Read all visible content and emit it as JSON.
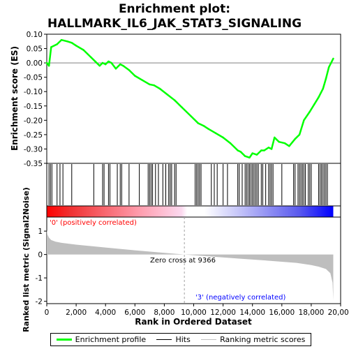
{
  "chart_data": {
    "type": "line",
    "title_line1": "Enrichment plot:",
    "title_line2": "HALLMARK_IL6_JAK_STAT3_SIGNALING",
    "es_panel": {
      "ylabel": "Enrichment score (ES)",
      "ylim": [
        -0.35,
        0.1
      ],
      "yticks": [
        "0.10",
        "0.05",
        "0.00",
        "-0.05",
        "-0.10",
        "-0.15",
        "-0.20",
        "-0.25",
        "-0.30",
        "-0.35"
      ],
      "ytick_values": [
        0.1,
        0.05,
        0.0,
        -0.05,
        -0.1,
        -0.15,
        -0.2,
        -0.25,
        -0.3,
        -0.35
      ],
      "series": [
        {
          "name": "Enrichment profile",
          "color": "#00ff00",
          "x": [
            0,
            150,
            300,
            700,
            1000,
            1400,
            1700,
            2000,
            2500,
            3000,
            3300,
            3600,
            3800,
            4000,
            4200,
            4400,
            4700,
            5000,
            5200,
            5600,
            6000,
            6500,
            7000,
            7300,
            7700,
            8200,
            8700,
            9200,
            9800,
            10300,
            10700,
            11000,
            11500,
            12000,
            12500,
            13000,
            13200,
            13500,
            13800,
            14000,
            14300,
            14600,
            14800,
            15100,
            15300,
            15500,
            15800,
            16200,
            16500,
            16900,
            17200,
            17500,
            17900,
            18200,
            18500,
            18800,
            19000,
            19200,
            19500
          ],
          "y": [
            0.0,
            -0.01,
            0.055,
            0.065,
            0.08,
            0.075,
            0.07,
            0.06,
            0.045,
            0.02,
            0.005,
            -0.01,
            0.0,
            -0.005,
            0.005,
            0.0,
            -0.02,
            -0.005,
            -0.01,
            -0.025,
            -0.045,
            -0.06,
            -0.075,
            -0.078,
            -0.09,
            -0.11,
            -0.13,
            -0.155,
            -0.185,
            -0.21,
            -0.22,
            -0.23,
            -0.245,
            -0.26,
            -0.28,
            -0.305,
            -0.31,
            -0.325,
            -0.33,
            -0.315,
            -0.32,
            -0.305,
            -0.305,
            -0.295,
            -0.3,
            -0.26,
            -0.275,
            -0.28,
            -0.29,
            -0.265,
            -0.25,
            -0.2,
            -0.17,
            -0.145,
            -0.12,
            -0.09,
            -0.055,
            -0.015,
            0.015
          ]
        }
      ]
    },
    "hits": {
      "name": "Hits",
      "x": [
        150,
        250,
        350,
        700,
        900,
        1100,
        1700,
        3200,
        3800,
        3900,
        4200,
        4300,
        4800,
        5000,
        5100,
        5600,
        6300,
        6900,
        7000,
        7100,
        7200,
        7400,
        7600,
        7900,
        8100,
        8300,
        8400,
        8500,
        8700,
        8800,
        10100,
        10200,
        10300,
        10400,
        10500,
        11200,
        11400,
        11600,
        12000,
        12300,
        13000,
        13100,
        13300,
        13500,
        13600,
        13700,
        13800,
        13900,
        14000,
        14100,
        14200,
        14300,
        14400,
        14600,
        14700,
        14900,
        15100,
        15200,
        15300,
        15400,
        16000,
        16800,
        16900,
        17100,
        17200,
        17300,
        17400,
        17500,
        17600,
        17800,
        17900,
        18000,
        18500,
        18600,
        18700,
        18800,
        18900,
        19000,
        19100
      ]
    },
    "ranked_metric": {
      "ylabel": "Ranked list metric (Signal2Noise)",
      "ylim": [
        -2.1,
        1.6
      ],
      "yticks": [
        "1",
        "0",
        "-1",
        "-2"
      ],
      "ytick_values": [
        1,
        0,
        -1,
        -2
      ],
      "x": [
        0,
        50,
        150,
        300,
        600,
        1000,
        2000,
        4000,
        6000,
        8000,
        9366,
        11000,
        13000,
        15000,
        17000,
        18000,
        18500,
        19000,
        19300,
        19450,
        19500
      ],
      "y": [
        1.05,
        0.85,
        0.72,
        0.62,
        0.55,
        0.5,
        0.42,
        0.3,
        0.18,
        0.07,
        0.0,
        -0.08,
        -0.17,
        -0.26,
        -0.36,
        -0.45,
        -0.52,
        -0.62,
        -0.8,
        -1.2,
        -1.95
      ],
      "label": "Ranking metric scores"
    },
    "xlabel": "Rank in Ordered Dataset",
    "xlim": [
      0,
      20000
    ],
    "xticks": [
      "0",
      "2,000",
      "4,000",
      "6,000",
      "8,000",
      "10,000",
      "12,000",
      "14,000",
      "16,000",
      "18,000",
      "20,000"
    ],
    "xtick_values": [
      0,
      2000,
      4000,
      6000,
      8000,
      10000,
      12000,
      14000,
      16000,
      18000,
      20000
    ],
    "list_size": 19500,
    "zero_cross": 9366,
    "annotations": {
      "positive": "'0' (positively correlated)",
      "negative": "'3' (negatively correlated)",
      "zero_cross": "Zero cross at 9366"
    },
    "colors": {
      "positive": "#ff0000",
      "negative": "#0000ff",
      "profile": "#00ff00",
      "metric_fill": "#bebebe"
    }
  },
  "legend": {
    "profile_label": "Enrichment profile",
    "hits_label": "Hits",
    "ranking_label": "Ranking metric scores"
  }
}
